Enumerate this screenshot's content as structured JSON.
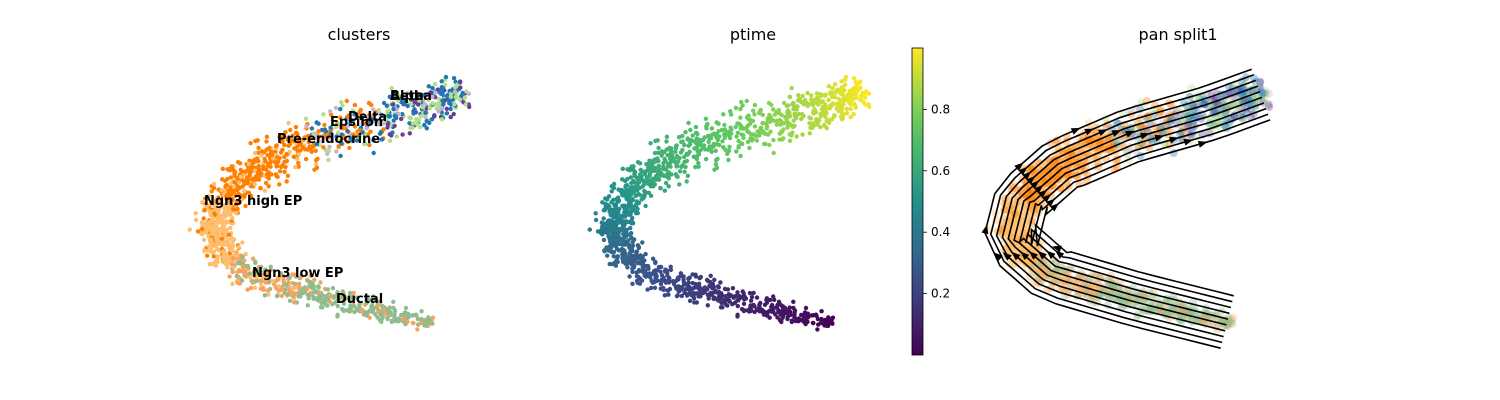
{
  "chart_data": [
    {
      "type": "scatter",
      "title": "clusters",
      "cluster_labels": [
        "Alpha",
        "Beta",
        "Delta",
        "Epsilon",
        "Pre-endocrine",
        "Ngn3 high EP",
        "Ngn3 low EP",
        "Ductal"
      ],
      "palette": {
        "Ductal": "#8fbc8f",
        "Ngn3 low EP": "#f4a460",
        "Ngn3 high EP": "#fdbf6f",
        "Pre-endocrine": "#ff7f00",
        "Beta": "#1f78b4",
        "Alpha": "#b2df8a",
        "Delta": "#6a3d9a",
        "Epsilon": "#cab2d6"
      },
      "grid": false
    },
    {
      "type": "scatter",
      "title": "ptime",
      "colorbar": {
        "ticks": [
          "0.2",
          "0.4",
          "0.6",
          "0.8"
        ],
        "range": [
          0,
          1
        ],
        "colormap": "viridis"
      },
      "grid": false
    },
    {
      "type": "scatter",
      "title": "pan split1",
      "overlay": "streamlines",
      "grid": false
    }
  ]
}
